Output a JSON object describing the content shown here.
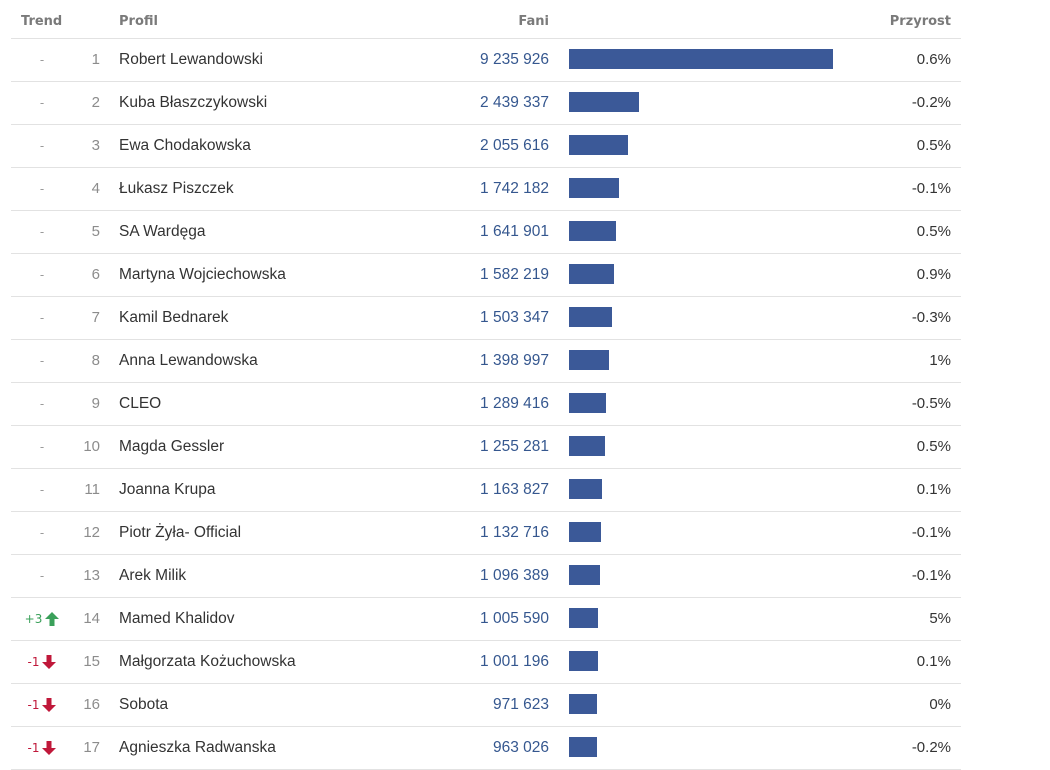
{
  "header": {
    "trend_label": "Trend",
    "profile_label": "Profil",
    "fans_label": "Fani",
    "growth_label": "Przyrost"
  },
  "colors": {
    "bar": "#3b5998",
    "up": "#3aa05a",
    "down": "#c0183a"
  },
  "rows": [
    {
      "trend": "-",
      "direction": "none",
      "rank": "1",
      "name": "Robert Lewandowski",
      "fans": "9 235 926",
      "fans_value": 9235926,
      "growth": "0.6%"
    },
    {
      "trend": "-",
      "direction": "none",
      "rank": "2",
      "name": "Kuba Błaszczykowski",
      "fans": "2 439 337",
      "fans_value": 2439337,
      "growth": "-0.2%"
    },
    {
      "trend": "-",
      "direction": "none",
      "rank": "3",
      "name": "Ewa Chodakowska",
      "fans": "2 055 616",
      "fans_value": 2055616,
      "growth": "0.5%"
    },
    {
      "trend": "-",
      "direction": "none",
      "rank": "4",
      "name": "Łukasz Piszczek",
      "fans": "1 742 182",
      "fans_value": 1742182,
      "growth": "-0.1%"
    },
    {
      "trend": "-",
      "direction": "none",
      "rank": "5",
      "name": "SA Wardęga",
      "fans": "1 641 901",
      "fans_value": 1641901,
      "growth": "0.5%"
    },
    {
      "trend": "-",
      "direction": "none",
      "rank": "6",
      "name": "Martyna Wojciechowska",
      "fans": "1 582 219",
      "fans_value": 1582219,
      "growth": "0.9%"
    },
    {
      "trend": "-",
      "direction": "none",
      "rank": "7",
      "name": "Kamil Bednarek",
      "fans": "1 503 347",
      "fans_value": 1503347,
      "growth": "-0.3%"
    },
    {
      "trend": "-",
      "direction": "none",
      "rank": "8",
      "name": "Anna Lewandowska",
      "fans": "1 398 997",
      "fans_value": 1398997,
      "growth": "1%"
    },
    {
      "trend": "-",
      "direction": "none",
      "rank": "9",
      "name": "CLEO",
      "fans": "1 289 416",
      "fans_value": 1289416,
      "growth": "-0.5%"
    },
    {
      "trend": "-",
      "direction": "none",
      "rank": "10",
      "name": "Magda Gessler",
      "fans": "1 255 281",
      "fans_value": 1255281,
      "growth": "0.5%"
    },
    {
      "trend": "-",
      "direction": "none",
      "rank": "11",
      "name": "Joanna Krupa",
      "fans": "1 163 827",
      "fans_value": 1163827,
      "growth": "0.1%"
    },
    {
      "trend": "-",
      "direction": "none",
      "rank": "12",
      "name": "Piotr Żyła- Official",
      "fans": "1 132 716",
      "fans_value": 1132716,
      "growth": "-0.1%"
    },
    {
      "trend": "-",
      "direction": "none",
      "rank": "13",
      "name": "Arek Milik",
      "fans": "1 096 389",
      "fans_value": 1096389,
      "growth": "-0.1%"
    },
    {
      "trend": "+3",
      "direction": "up",
      "rank": "14",
      "name": "Mamed Khalidov",
      "fans": "1 005 590",
      "fans_value": 1005590,
      "growth": "5%"
    },
    {
      "trend": "-1",
      "direction": "down",
      "rank": "15",
      "name": "Małgorzata Kożuchowska",
      "fans": "1 001 196",
      "fans_value": 1001196,
      "growth": "0.1%"
    },
    {
      "trend": "-1",
      "direction": "down",
      "rank": "16",
      "name": "Sobota",
      "fans": "971 623",
      "fans_value": 971623,
      "growth": "0%"
    },
    {
      "trend": "-1",
      "direction": "down",
      "rank": "17",
      "name": "Agnieszka Radwanska",
      "fans": "963 026",
      "fans_value": 963026,
      "growth": "-0.2%"
    }
  ]
}
